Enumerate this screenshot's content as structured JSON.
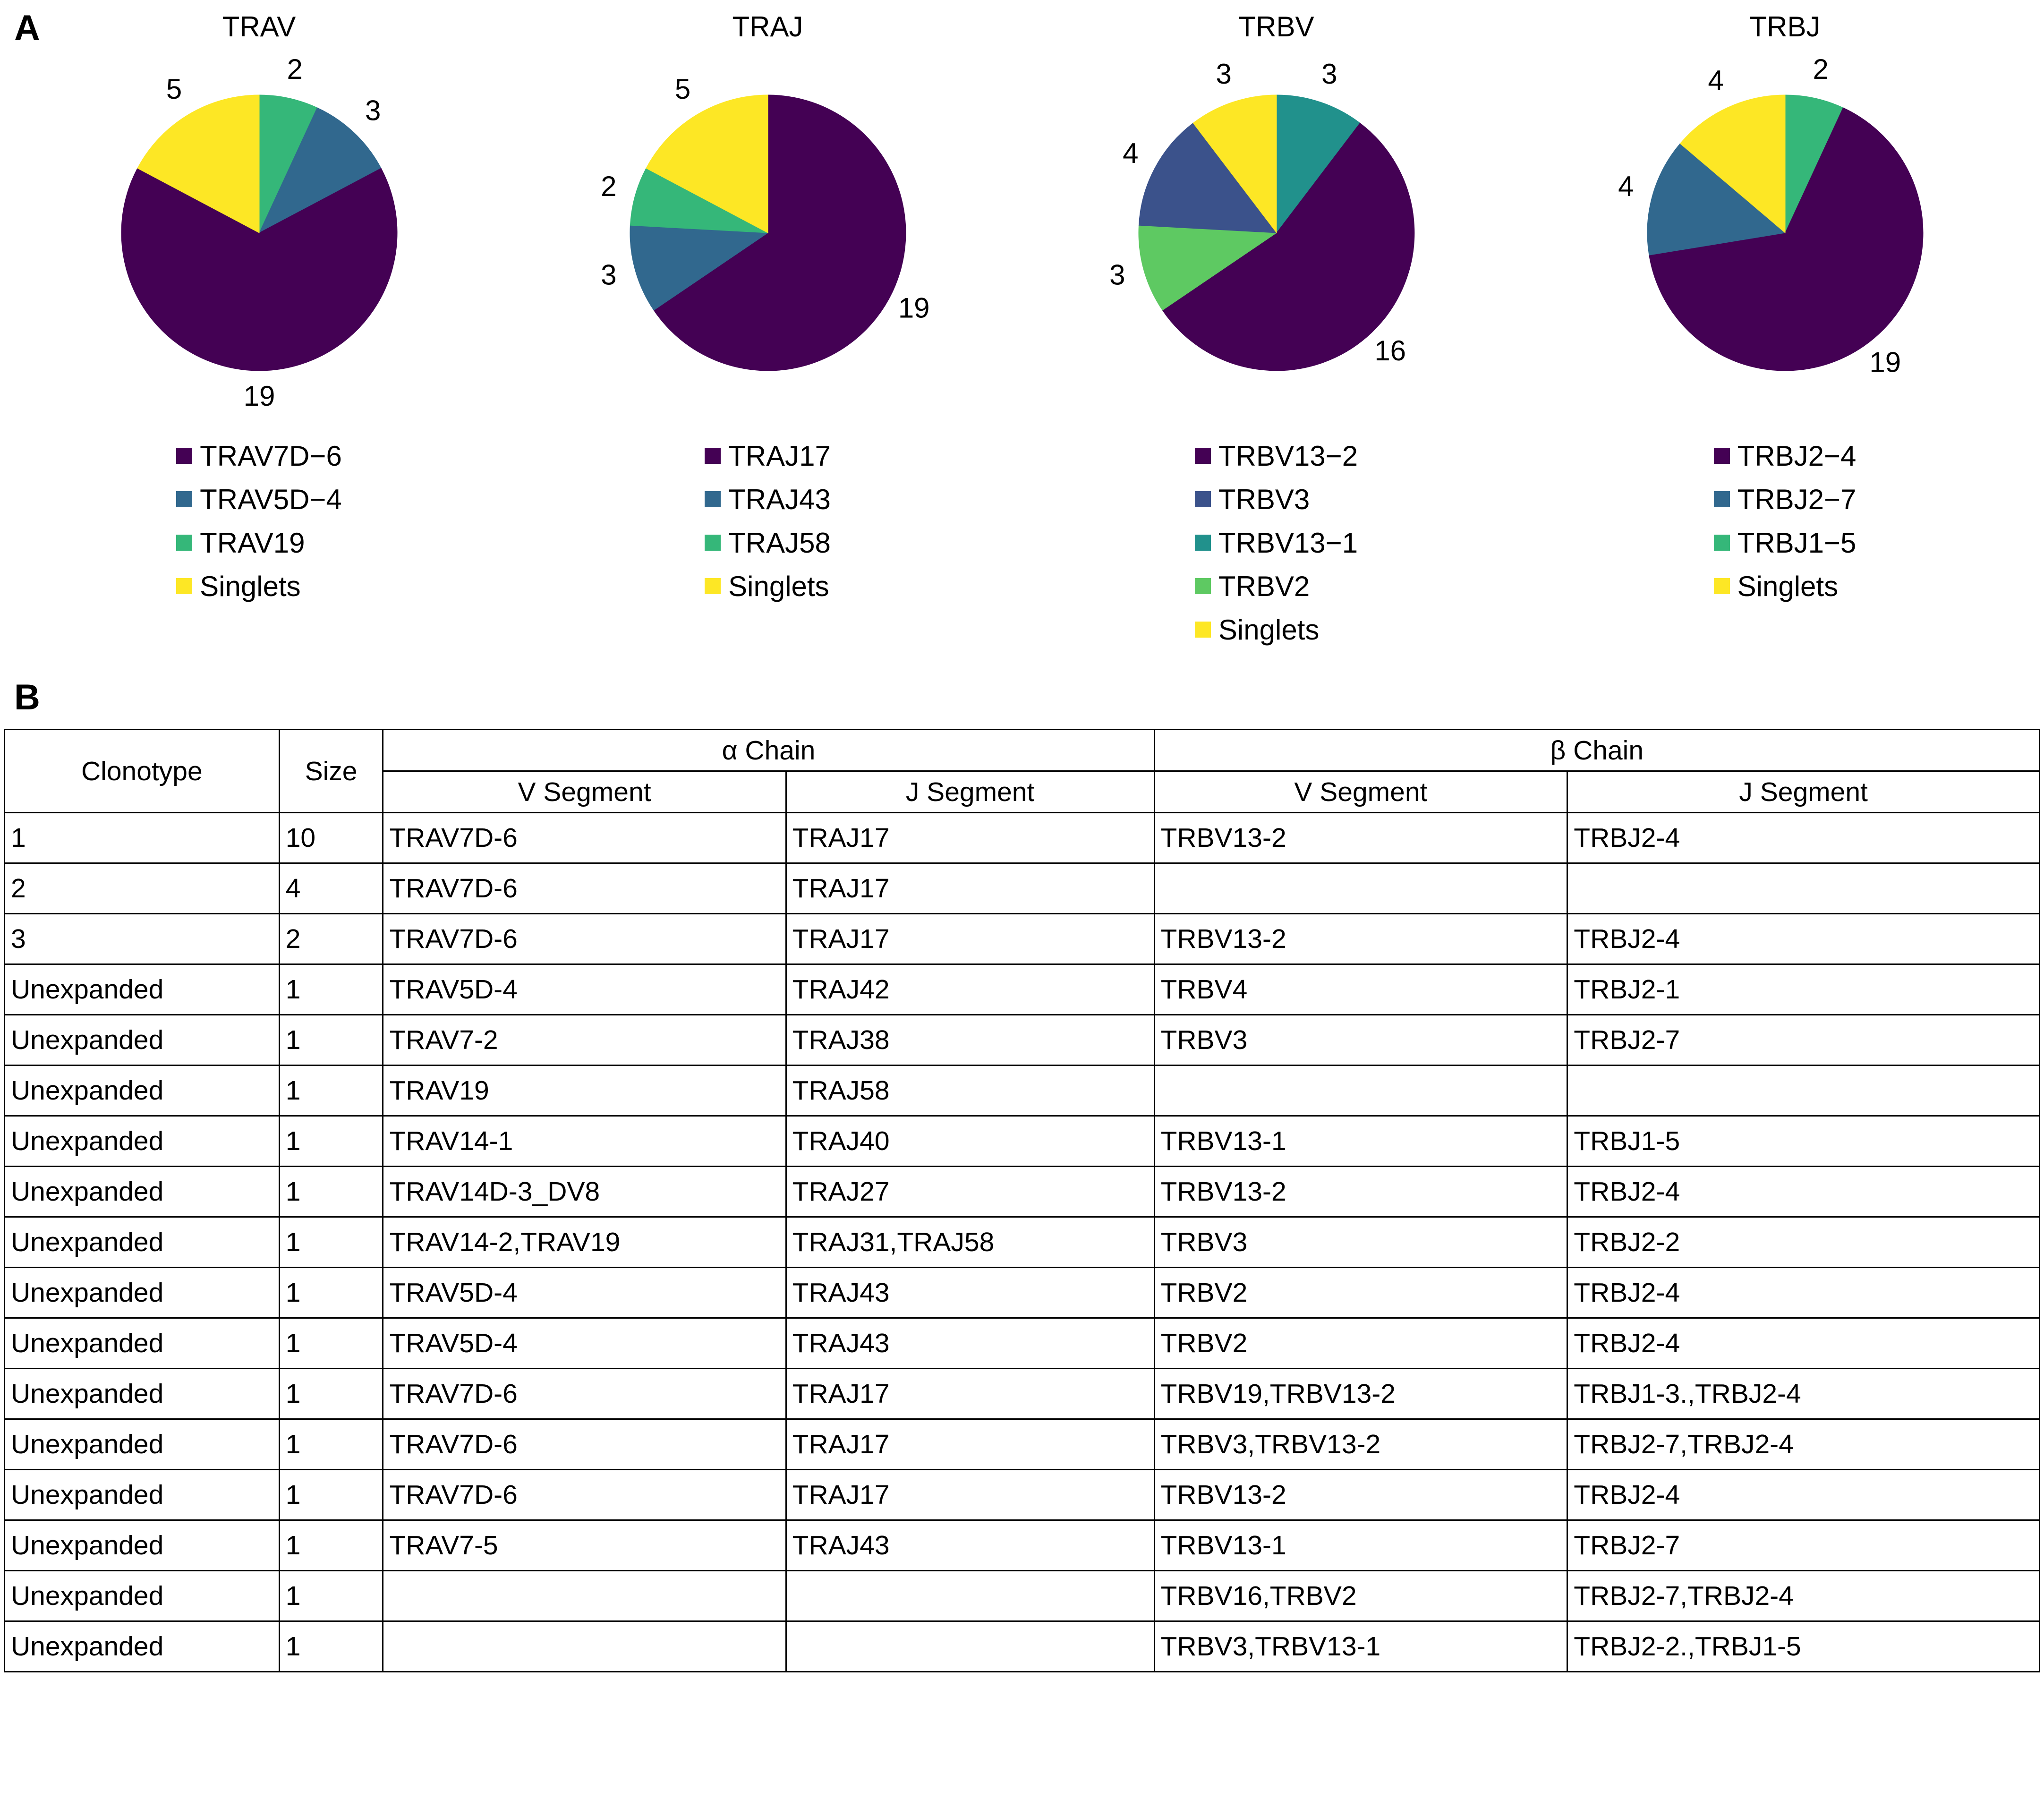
{
  "figure": {
    "panel_a_label": "A",
    "panel_b_label": "B"
  },
  "colors": {
    "purple": "#440154",
    "steel_blue": "#31688e",
    "indigo_blue": "#3b528b",
    "teal": "#21918c",
    "green": "#35b779",
    "light_green": "#5ec962",
    "yellow": "#fde725"
  },
  "chart_data": [
    {
      "type": "pie",
      "title": "TRAV",
      "total": 29,
      "slices": [
        {
          "label": "TRAV19",
          "value": 2,
          "color": "#35b779"
        },
        {
          "label": "TRAV5D-4",
          "value": 3,
          "color": "#31688e"
        },
        {
          "label": "TRAV7D-6",
          "value": 19,
          "color": "#440154"
        },
        {
          "label": "Singlets",
          "value": 5,
          "color": "#fde725"
        }
      ],
      "legend": [
        {
          "label": "TRAV7D−6",
          "color": "#440154"
        },
        {
          "label": "TRAV5D−4",
          "color": "#31688e"
        },
        {
          "label": "TRAV19",
          "color": "#35b779"
        },
        {
          "label": "Singlets",
          "color": "#fde725"
        }
      ]
    },
    {
      "type": "pie",
      "title": "TRAJ",
      "total": 29,
      "slices": [
        {
          "label": "TRAJ17",
          "value": 19,
          "color": "#440154"
        },
        {
          "label": "TRAJ43",
          "value": 3,
          "color": "#31688e"
        },
        {
          "label": "TRAJ58",
          "value": 2,
          "color": "#35b779"
        },
        {
          "label": "Singlets",
          "value": 5,
          "color": "#fde725"
        }
      ],
      "legend": [
        {
          "label": "TRAJ17",
          "color": "#440154"
        },
        {
          "label": "TRAJ43",
          "color": "#31688e"
        },
        {
          "label": "TRAJ58",
          "color": "#35b779"
        },
        {
          "label": "Singlets",
          "color": "#fde725"
        }
      ]
    },
    {
      "type": "pie",
      "title": "TRBV",
      "total": 29,
      "slices": [
        {
          "label": "TRBV13-1",
          "value": 3,
          "color": "#21918c"
        },
        {
          "label": "TRBV13-2",
          "value": 16,
          "color": "#440154"
        },
        {
          "label": "TRBV2",
          "value": 3,
          "color": "#5ec962"
        },
        {
          "label": "TRBV3",
          "value": 4,
          "color": "#3b528b"
        },
        {
          "label": "Singlets",
          "value": 3,
          "color": "#fde725"
        }
      ],
      "legend": [
        {
          "label": "TRBV13−2",
          "color": "#440154"
        },
        {
          "label": "TRBV3",
          "color": "#3b528b"
        },
        {
          "label": "TRBV13−1",
          "color": "#21918c"
        },
        {
          "label": "TRBV2",
          "color": "#5ec962"
        },
        {
          "label": "Singlets",
          "color": "#fde725"
        }
      ]
    },
    {
      "type": "pie",
      "title": "TRBJ",
      "total": 29,
      "slices": [
        {
          "label": "TRBJ1-5",
          "value": 2,
          "color": "#35b779"
        },
        {
          "label": "TRBJ2-4",
          "value": 19,
          "color": "#440154"
        },
        {
          "label": "TRBJ2-7",
          "value": 4,
          "color": "#31688e"
        },
        {
          "label": "Singlets",
          "value": 4,
          "color": "#fde725"
        }
      ],
      "legend": [
        {
          "label": "TRBJ2−4",
          "color": "#440154"
        },
        {
          "label": "TRBJ2−7",
          "color": "#31688e"
        },
        {
          "label": "TRBJ1−5",
          "color": "#35b779"
        },
        {
          "label": "Singlets",
          "color": "#fde725"
        }
      ]
    }
  ],
  "table": {
    "headers": {
      "clonotype": "Clonotype",
      "size": "Size",
      "alpha_chain": "α Chain",
      "beta_chain": "β Chain",
      "v_segment": "V Segment",
      "j_segment": "J Segment"
    },
    "rows": [
      [
        "1",
        "10",
        "TRAV7D-6",
        "TRAJ17",
        "TRBV13-2",
        "TRBJ2-4"
      ],
      [
        "2",
        "4",
        "TRAV7D-6",
        "TRAJ17",
        "",
        ""
      ],
      [
        "3",
        "2",
        "TRAV7D-6",
        "TRAJ17",
        "TRBV13-2",
        "TRBJ2-4"
      ],
      [
        "Unexpanded",
        "1",
        "TRAV5D-4",
        "TRAJ42",
        "TRBV4",
        "TRBJ2-1"
      ],
      [
        "Unexpanded",
        "1",
        "TRAV7-2",
        "TRAJ38",
        "TRBV3",
        "TRBJ2-7"
      ],
      [
        "Unexpanded",
        "1",
        "TRAV19",
        "TRAJ58",
        "",
        ""
      ],
      [
        "Unexpanded",
        "1",
        "TRAV14-1",
        "TRAJ40",
        "TRBV13-1",
        "TRBJ1-5"
      ],
      [
        "Unexpanded",
        "1",
        "TRAV14D-3_DV8",
        "TRAJ27",
        "TRBV13-2",
        "TRBJ2-4"
      ],
      [
        "Unexpanded",
        "1",
        "TRAV14-2,TRAV19",
        "TRAJ31,TRAJ58",
        "TRBV3",
        "TRBJ2-2"
      ],
      [
        "Unexpanded",
        "1",
        "TRAV5D-4",
        "TRAJ43",
        "TRBV2",
        "TRBJ2-4"
      ],
      [
        "Unexpanded",
        "1",
        "TRAV5D-4",
        "TRAJ43",
        "TRBV2",
        "TRBJ2-4"
      ],
      [
        "Unexpanded",
        "1",
        "TRAV7D-6",
        "TRAJ17",
        "TRBV19,TRBV13-2",
        "TRBJ1-3.,TRBJ2-4"
      ],
      [
        "Unexpanded",
        "1",
        "TRAV7D-6",
        "TRAJ17",
        "TRBV3,TRBV13-2",
        "TRBJ2-7,TRBJ2-4"
      ],
      [
        "Unexpanded",
        "1",
        "TRAV7D-6",
        "TRAJ17",
        "TRBV13-2",
        "TRBJ2-4"
      ],
      [
        "Unexpanded",
        "1",
        "TRAV7-5",
        "TRAJ43",
        "TRBV13-1",
        "TRBJ2-7"
      ],
      [
        "Unexpanded",
        "1",
        "",
        "",
        "TRBV16,TRBV2",
        "TRBJ2-7,TRBJ2-4"
      ],
      [
        "Unexpanded",
        "1",
        "",
        "",
        "TRBV3,TRBV13-1",
        "TRBJ2-2.,TRBJ1-5"
      ]
    ]
  }
}
